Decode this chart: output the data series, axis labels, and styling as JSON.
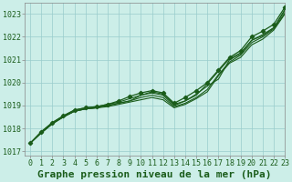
{
  "title": "Graphe pression niveau de la mer (hPa)",
  "bg_color": "#cceee8",
  "grid_color": "#99cccc",
  "line_color": "#1a5c1a",
  "xlim": [
    -0.5,
    23
  ],
  "ylim": [
    1016.8,
    1023.5
  ],
  "yticks": [
    1017,
    1018,
    1019,
    1020,
    1021,
    1022,
    1023
  ],
  "xticks": [
    0,
    1,
    2,
    3,
    4,
    5,
    6,
    7,
    8,
    9,
    10,
    11,
    12,
    13,
    14,
    15,
    16,
    17,
    18,
    19,
    20,
    21,
    22,
    23
  ],
  "series": [
    [
      1017.35,
      1017.8,
      1018.2,
      1018.5,
      1018.75,
      1018.85,
      1018.9,
      1019.0,
      1019.1,
      1019.2,
      1019.45,
      1019.6,
      1019.5,
      1019.05,
      1019.2,
      1019.45,
      1019.95,
      1020.5,
      1021.05,
      1021.3,
      1021.85,
      1022.1,
      1022.4,
      1023.15
    ],
    [
      1017.35,
      1017.8,
      1018.2,
      1018.5,
      1018.75,
      1018.85,
      1018.9,
      1019.0,
      1019.1,
      1019.2,
      1019.35,
      1019.45,
      1019.35,
      1018.95,
      1019.1,
      1019.35,
      1019.7,
      1020.35,
      1020.9,
      1021.2,
      1021.75,
      1022.0,
      1022.35,
      1023.05
    ],
    [
      1017.35,
      1017.8,
      1018.2,
      1018.5,
      1018.75,
      1018.85,
      1018.9,
      1018.95,
      1019.05,
      1019.15,
      1019.25,
      1019.35,
      1019.25,
      1018.9,
      1019.05,
      1019.3,
      1019.6,
      1020.3,
      1020.85,
      1021.1,
      1021.65,
      1021.9,
      1022.3,
      1023.0
    ],
    [
      1017.35,
      1017.85,
      1018.25,
      1018.55,
      1018.8,
      1018.9,
      1018.95,
      1019.05,
      1019.15,
      1019.3,
      1019.45,
      1019.55,
      1019.45,
      1019.0,
      1019.2,
      1019.5,
      1019.85,
      1020.15,
      1021.0,
      1021.25,
      1021.85,
      1022.05,
      1022.4,
      1023.2
    ],
    [
      1017.35,
      1017.85,
      1018.25,
      1018.55,
      1018.8,
      1018.9,
      1018.95,
      1019.05,
      1019.2,
      1019.4,
      1019.55,
      1019.65,
      1019.55,
      1019.1,
      1019.35,
      1019.65,
      1020.0,
      1020.55,
      1021.1,
      1021.4,
      1022.0,
      1022.25,
      1022.55,
      1023.3
    ]
  ],
  "main_series_idx": 4,
  "title_fontsize": 8,
  "tick_fontsize": 6,
  "label_color": "#1a5c1a"
}
